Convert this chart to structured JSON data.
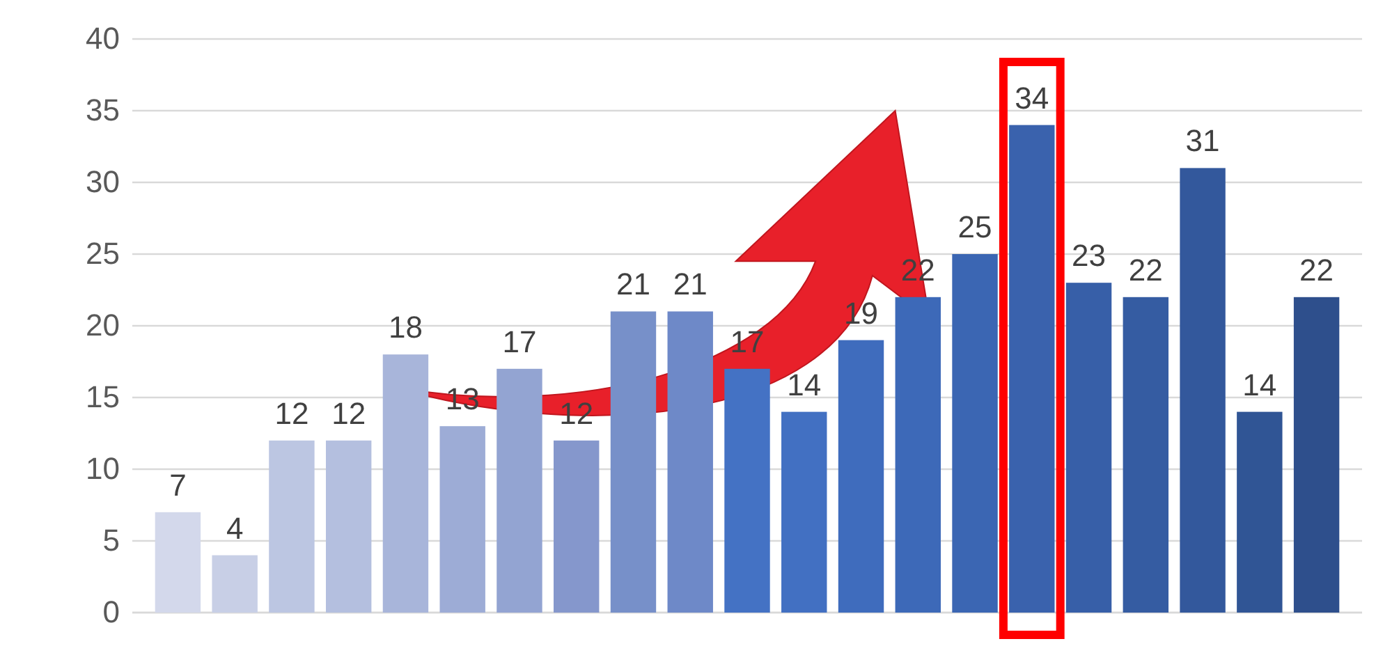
{
  "chart_data": {
    "type": "bar",
    "categories": [
      null,
      null,
      null,
      null,
      null,
      null,
      null,
      null,
      null,
      null,
      null,
      null,
      null,
      null,
      null,
      null,
      null,
      null,
      null,
      null,
      null
    ],
    "values": [
      7,
      4,
      12,
      12,
      18,
      13,
      17,
      12,
      21,
      21,
      17,
      14,
      19,
      22,
      25,
      34,
      23,
      22,
      31,
      14,
      22
    ],
    "colors": [
      "#d3d8eb",
      "#c8cfe6",
      "#bcc6e2",
      "#b4bfdf",
      "#a8b5da",
      "#9dacd6",
      "#93a4d2",
      "#8597cc",
      "#7790c9",
      "#6e89c8",
      "#4472c4",
      "#4270c2",
      "#3f6cbd",
      "#3d69b8",
      "#3b66b3",
      "#3a62ad",
      "#375fa8",
      "#355ca2",
      "#33589c",
      "#305595",
      "#2e4f8c"
    ],
    "ylim": [
      0,
      40
    ],
    "yticks": [
      0,
      5,
      10,
      15,
      20,
      25,
      30,
      35,
      40
    ],
    "grid": "y",
    "data_labels": true
  }
}
